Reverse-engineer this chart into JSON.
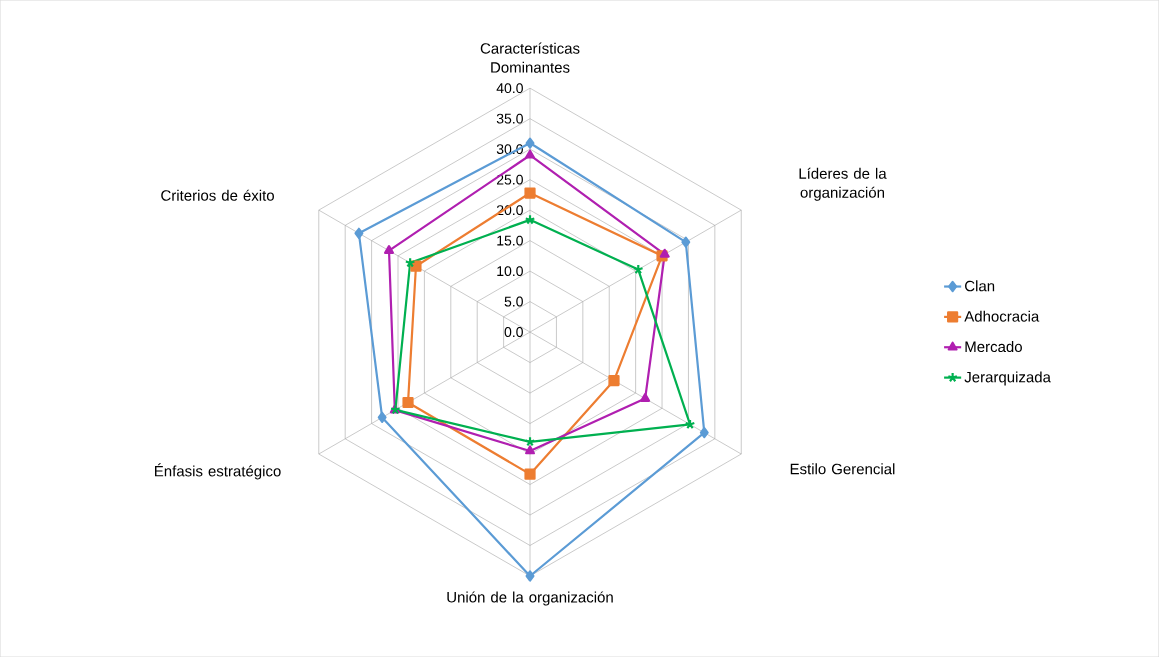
{
  "chart_data": {
    "type": "radar",
    "categories": [
      "Características Dominantes",
      "Líderes de la organización",
      "Estilo Gerencial",
      "Unión de la organización",
      "Énfasis estratégico",
      "Criterios de éxito"
    ],
    "series": [
      {
        "name": "Clan",
        "color": "#5b9bd5",
        "marker": "diamond",
        "values": [
          31.0,
          29.5,
          33.0,
          40.0,
          28.0,
          32.4
        ]
      },
      {
        "name": "Adhocracia",
        "color": "#ed7d31",
        "marker": "square",
        "values": [
          22.8,
          25.0,
          15.9,
          23.3,
          23.1,
          21.6
        ]
      },
      {
        "name": "Mercado",
        "color": "#b01fb0",
        "marker": "triangle",
        "values": [
          29.0,
          25.5,
          21.8,
          19.5,
          25.6,
          26.7
        ]
      },
      {
        "name": "Jerarquizada",
        "color": "#00b050",
        "marker": "star",
        "values": [
          18.4,
          20.5,
          30.3,
          18.0,
          25.5,
          22.7
        ]
      }
    ],
    "ylim": [
      0,
      40
    ],
    "yticks": [
      {
        "value": 0,
        "label": "0.0"
      },
      {
        "value": 5,
        "label": "5.0"
      },
      {
        "value": 10,
        "label": "10.0"
      },
      {
        "value": 15,
        "label": "15.0"
      },
      {
        "value": 20,
        "label": "20.0"
      },
      {
        "value": 25,
        "label": "25.0"
      },
      {
        "value": 30,
        "label": "30.0"
      },
      {
        "value": 35,
        "label": "35.0"
      },
      {
        "value": 40,
        "label": "40.0"
      }
    ],
    "grid": true,
    "legend": "right"
  }
}
